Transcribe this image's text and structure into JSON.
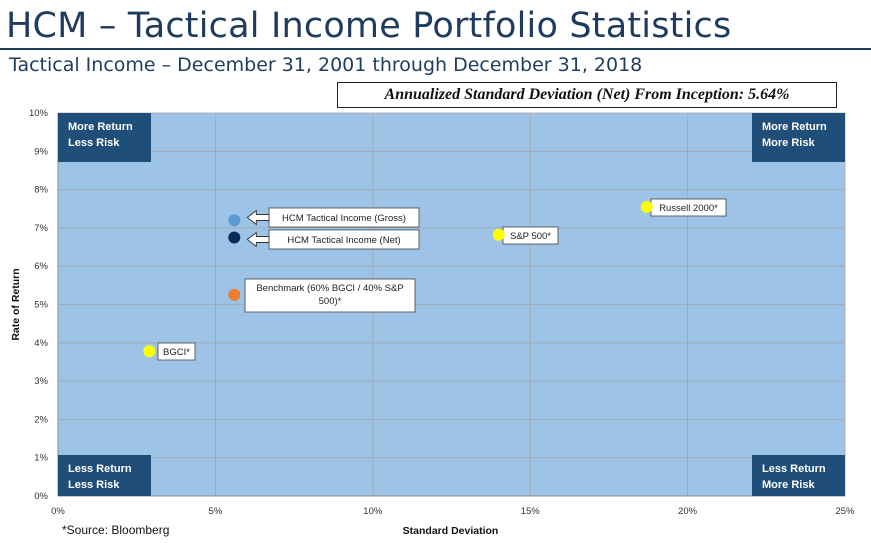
{
  "header": {
    "title": "HCM – Tactical Income Portfolio Statistics",
    "subtitle": "Tactical Income – December 31, 2001 through December 31, 2018",
    "stat_box": "Annualized Standard Deviation (Net) From Inception: 5.64%"
  },
  "footnote": "*Source: Bloomberg",
  "colors": {
    "title": "#1f3c5e",
    "plot_bg": "#9dc3e6",
    "quadrant_box": "#1f4e79",
    "gross": "#5b9bd5",
    "net": "#0d2b5a",
    "benchmark": "#ed7d31",
    "index": "#ffff00"
  },
  "chart_data": {
    "type": "scatter",
    "xlabel": "Standard Deviation",
    "ylabel": "Rate of Return",
    "xlim": [
      0,
      25
    ],
    "ylim": [
      0,
      10
    ],
    "x_ticks": [
      0,
      5,
      10,
      15,
      20,
      25
    ],
    "x_tick_labels": [
      "0%",
      "5%",
      "10%",
      "15%",
      "20%",
      "25%"
    ],
    "y_ticks": [
      0,
      1,
      2,
      3,
      4,
      5,
      6,
      7,
      8,
      9,
      10
    ],
    "y_tick_labels": [
      "0%",
      "1%",
      "2%",
      "3%",
      "4%",
      "5%",
      "6%",
      "7%",
      "8%",
      "9%",
      "10%"
    ],
    "grid": true,
    "quadrants": {
      "top_left": [
        "More Return",
        "Less Risk"
      ],
      "top_right": [
        "More Return",
        "More Risk"
      ],
      "bottom_left": [
        "Less Return",
        "Less Risk"
      ],
      "bottom_right": [
        "Less Return",
        "More Risk"
      ]
    },
    "points": [
      {
        "name": "HCM Tactical Income (Gross)",
        "label_lines": [
          "HCM Tactical Income (Gross)"
        ],
        "x": 5.6,
        "y": 7.2,
        "color": "#5b9bd5",
        "arrow": true
      },
      {
        "name": "HCM Tactical Income (Net)",
        "label_lines": [
          "HCM Tactical Income (Net)"
        ],
        "x": 5.6,
        "y": 6.75,
        "color": "#0d2b5a",
        "arrow": true
      },
      {
        "name": "Benchmark",
        "label_lines": [
          "Benchmark (60% BGCI / 40% S&P",
          "500)*"
        ],
        "x": 5.6,
        "y": 5.25,
        "color": "#ed7d31",
        "arrow": false
      },
      {
        "name": "BGCI*",
        "label_lines": [
          "BGCI*"
        ],
        "x": 2.9,
        "y": 3.78,
        "color": "#ffff00",
        "arrow": false
      },
      {
        "name": "S&P 500*",
        "label_lines": [
          "S&P 500*"
        ],
        "x": 14.0,
        "y": 6.82,
        "color": "#ffff00",
        "arrow": false
      },
      {
        "name": "Russell 2000*",
        "label_lines": [
          "Russell 2000*"
        ],
        "x": 18.7,
        "y": 7.55,
        "color": "#ffff00",
        "arrow": false
      }
    ]
  }
}
